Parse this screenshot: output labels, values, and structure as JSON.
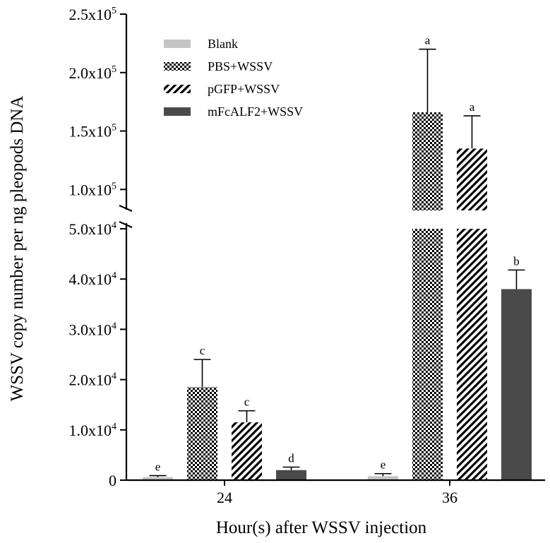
{
  "chart_data": {
    "type": "bar",
    "title": "",
    "xlabel": "Hour(s) after WSSV injection",
    "ylabel": "WSSV copy number per ng pleopods DNA",
    "categories": [
      "24",
      "36"
    ],
    "y_axis_break": {
      "lower_range": [
        0,
        50000
      ],
      "upper_range": [
        87500,
        250000
      ]
    },
    "lower_ticks": [
      {
        "value": 0,
        "mant": "0",
        "exp": ""
      },
      {
        "value": 10000,
        "mant": "1.0x10",
        "exp": "4"
      },
      {
        "value": 20000,
        "mant": "2.0x10",
        "exp": "4"
      },
      {
        "value": 30000,
        "mant": "3.0x10",
        "exp": "4"
      },
      {
        "value": 40000,
        "mant": "4.0x10",
        "exp": "4"
      },
      {
        "value": 50000,
        "mant": "5.0x10",
        "exp": "4"
      }
    ],
    "upper_ticks": [
      {
        "value": 100000,
        "mant": "1.0x10",
        "exp": "5"
      },
      {
        "value": 150000,
        "mant": "1.5x10",
        "exp": "5"
      },
      {
        "value": 200000,
        "mant": "2.0x10",
        "exp": "5"
      },
      {
        "value": 250000,
        "mant": "2.5x10",
        "exp": "5"
      }
    ],
    "series": [
      {
        "name": "Blank",
        "pattern": "light-gray",
        "values": [
          600,
          800
        ],
        "errors": [
          300,
          500
        ],
        "letters": [
          "e",
          "e"
        ]
      },
      {
        "name": "PBS+WSSV",
        "pattern": "checkered",
        "values": [
          18500,
          166000
        ],
        "errors": [
          5500,
          54000
        ],
        "letters": [
          "c",
          "a"
        ]
      },
      {
        "name": "pGFP+WSSV",
        "pattern": "diagonal-stripes",
        "values": [
          11500,
          135000
        ],
        "errors": [
          2300,
          28000
        ],
        "letters": [
          "c",
          "a"
        ]
      },
      {
        "name": "mFcALF2+WSSV",
        "pattern": "dark-gray",
        "values": [
          2000,
          38000
        ],
        "errors": [
          600,
          3800
        ],
        "letters": [
          "d",
          "b"
        ]
      }
    ],
    "legend_position": "top-left",
    "colors": {
      "light": "#c4c4c4",
      "dark": "#4a4a4a",
      "ink": "#000000"
    }
  }
}
